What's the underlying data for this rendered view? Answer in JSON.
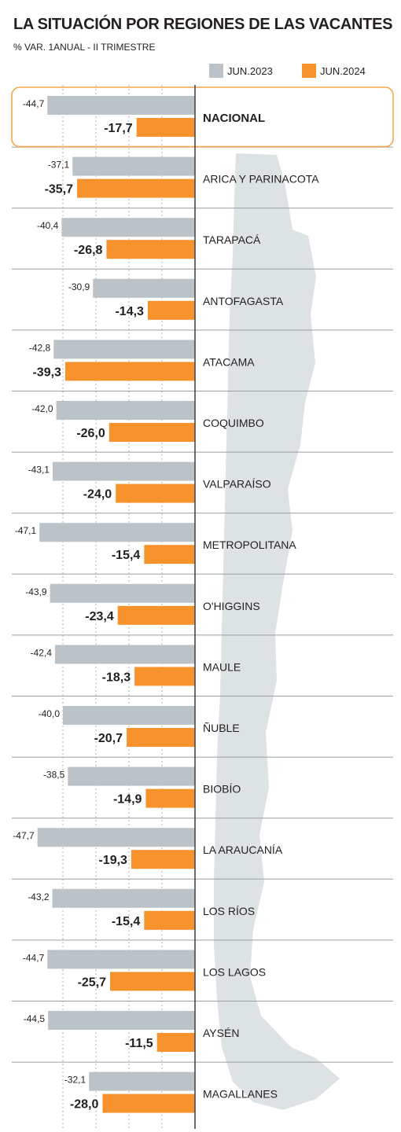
{
  "title": "LA SITUACIÓN POR REGIONES DE LAS VACANTES",
  "subtitle": "% VAR. 1ANUAL -  II TRIMESTRE",
  "colors": {
    "series_2023": "#bcc3c8",
    "series_2024": "#f7922c",
    "highlight_border": "#f7a64c",
    "map": "#dde2e5",
    "divider": "#9a9fa3",
    "grid": "#9a9fa3",
    "baseline": "#4a4a4a"
  },
  "legend": [
    {
      "label": "JUN.2023",
      "color": "#bcc3c8"
    },
    {
      "label": "JUN.2024",
      "color": "#f7922c"
    }
  ],
  "chart_data": {
    "type": "bar",
    "orientation": "horizontal",
    "title": "LA SITUACIÓN POR REGIONES DE LAS VACANTES",
    "subtitle": "% VAR. 1ANUAL -  II TRIMESTRE",
    "highlight_category": "NACIONAL",
    "categories": [
      "NACIONAL",
      "ARICA Y PARINACOTA",
      "TARAPACÁ",
      "ANTOFAGASTA",
      "ATACAMA",
      "COQUIMBO",
      "VALPARAÍSO",
      "METROPOLITANA",
      "O'HIGGINS",
      "MAULE",
      "ÑUBLE",
      "BIOBÍO",
      "LA ARAUCANÍA",
      "LOS RÍOS",
      "LOS LAGOS",
      "AYSÉN",
      "MAGALLANES"
    ],
    "series": [
      {
        "name": "JUN.2023",
        "values": [
          -44.7,
          -37.1,
          -40.4,
          -30.9,
          -42.8,
          -42.0,
          -43.1,
          -47.1,
          -43.9,
          -42.4,
          -40.0,
          -38.5,
          -47.7,
          -43.2,
          -44.7,
          -44.5,
          -32.1
        ],
        "labels": [
          "-44,7",
          "-37,1",
          "-40,4",
          "-30,9",
          "-42,8",
          "-42,0",
          "-43,1",
          "-47,1",
          "-43,9",
          "-42,4",
          "-40,0",
          "-38,5",
          "-47,7",
          "-43,2",
          "-44,7",
          "-44,5",
          "-32,1"
        ]
      },
      {
        "name": "JUN.2024",
        "values": [
          -17.7,
          -35.7,
          -26.8,
          -14.3,
          -39.3,
          -26.0,
          -24.0,
          -15.4,
          -23.4,
          -18.3,
          -20.7,
          -14.9,
          -19.3,
          -15.4,
          -25.7,
          -11.5,
          -28.0
        ],
        "labels": [
          "-17,7",
          "-35,7",
          "-26,8",
          "-14,3",
          "-39,3",
          "-26,0",
          "-24,0",
          "-15,4",
          "-23,4",
          "-18,3",
          "-20,7",
          "-14,9",
          "-19,3",
          "-15,4",
          "-25,7",
          "-11,5",
          "-28,0"
        ]
      }
    ],
    "xlim": [
      -55,
      0
    ],
    "grid": true,
    "legend_position": "top-right"
  }
}
